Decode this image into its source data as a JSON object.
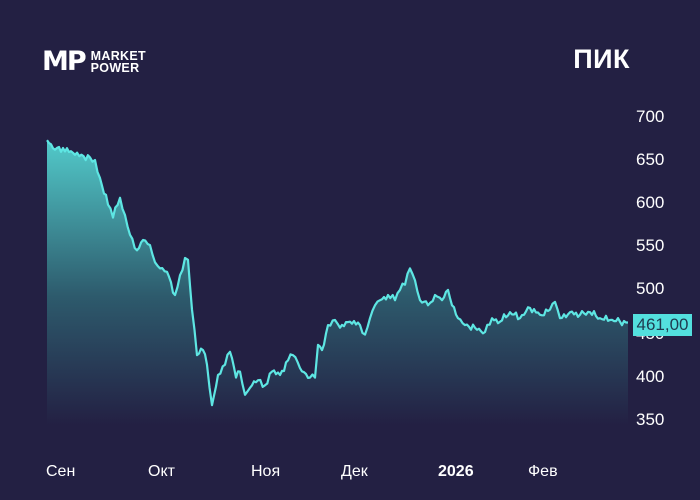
{
  "brand": {
    "logo_mark": "MP",
    "logo_line1": "MARKET",
    "logo_line2": "POWER"
  },
  "ticker": "ПИК",
  "current_price_label": "461,00",
  "colors": {
    "background": "#232043",
    "line": "#5ee6e3",
    "fill_top": "#4fc6c6",
    "fill_bottom": "#232043",
    "price_label_bg": "#53e0de"
  },
  "chart_data": {
    "type": "area",
    "title": "ПИК",
    "xlabel": "",
    "ylabel": "",
    "ylim": [
      350,
      700
    ],
    "y_ticks": [
      700,
      650,
      600,
      550,
      500,
      450,
      400,
      350
    ],
    "x_tick_labels": [
      "Сен",
      "Окт",
      "Ноя",
      "Дек",
      "2026",
      "Фев"
    ],
    "grid": false,
    "last_value": 461.0,
    "series": [
      {
        "name": "ПИК",
        "x": [
          47,
          55,
          63,
          75,
          90,
          95,
          100,
          108,
          113,
          120,
          125,
          130,
          137,
          143,
          150,
          155,
          160,
          167,
          175,
          180,
          185,
          188,
          192,
          197,
          203,
          207,
          212,
          218,
          225,
          230,
          236,
          240,
          245,
          252,
          258,
          265,
          272,
          280,
          288,
          293,
          300,
          310,
          315,
          318,
          322,
          328,
          335,
          340,
          350,
          360,
          365,
          370,
          375,
          380,
          388,
          395,
          400,
          405,
          410,
          415,
          420,
          428,
          435,
          442,
          448,
          452,
          458,
          465,
          475,
          485,
          492,
          500,
          510,
          520,
          530,
          540,
          550,
          555,
          560,
          570,
          580,
          590,
          600,
          610,
          620,
          628
        ],
        "values": [
          673,
          662,
          664,
          656,
          653,
          650,
          629,
          598,
          583,
          606,
          586,
          563,
          545,
          557,
          551,
          531,
          524,
          520,
          493,
          516,
          536,
          534,
          476,
          423,
          429,
          412,
          365,
          400,
          412,
          427,
          397,
          404,
          377,
          388,
          394,
          388,
          404,
          400,
          417,
          423,
          408,
          397,
          397,
          435,
          429,
          458,
          464,
          455,
          462,
          458,
          447,
          466,
          481,
          487,
          493,
          487,
          499,
          505,
          524,
          510,
          487,
          481,
          493,
          487,
          499,
          481,
          466,
          458,
          455,
          450,
          466,
          462,
          473,
          466,
          478,
          470,
          476,
          485,
          466,
          473,
          470,
          473,
          466,
          464,
          462,
          461
        ]
      }
    ]
  }
}
